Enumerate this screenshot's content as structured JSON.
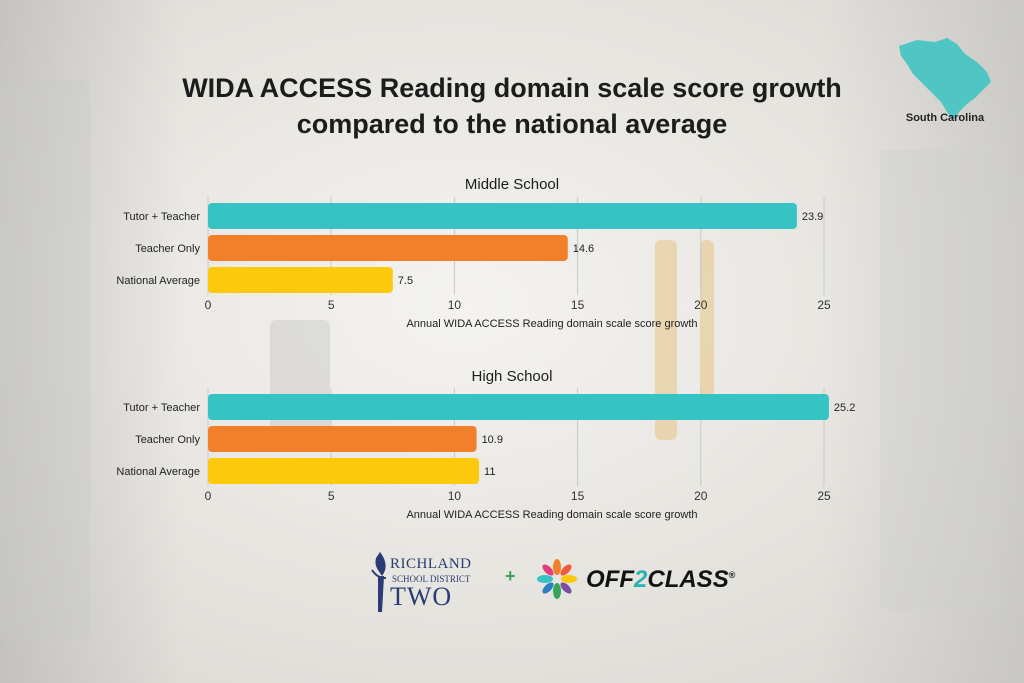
{
  "title_line1": "WIDA ACCESS Reading domain scale score growth",
  "title_line2": "compared to the national average",
  "state_label": "South Carolina",
  "colors": {
    "tutor_teacher": "#35c3c4",
    "teacher_only": "#f2802a",
    "national_average": "#fcc90b",
    "state_shape": "#4fc6c4"
  },
  "chart_data": [
    {
      "type": "bar",
      "orientation": "horizontal",
      "title": "Middle School",
      "categories": [
        "Tutor + Teacher",
        "Teacher Only",
        "National Average"
      ],
      "values": [
        23.9,
        14.6,
        7.5
      ],
      "xlabel": "Annual WIDA ACCESS Reading domain scale score growth",
      "xlim": [
        0,
        25
      ],
      "xticks": [
        0,
        5,
        10,
        15,
        20,
        25
      ],
      "grid": "vertical"
    },
    {
      "type": "bar",
      "orientation": "horizontal",
      "title": "High School",
      "categories": [
        "Tutor + Teacher",
        "Teacher Only",
        "National Average"
      ],
      "values": [
        25.2,
        10.9,
        11
      ],
      "xlabel": "Annual WIDA ACCESS Reading domain scale score growth",
      "xlim": [
        0,
        25
      ],
      "xticks": [
        0,
        5,
        10,
        15,
        20,
        25
      ],
      "grid": "vertical"
    }
  ],
  "logos": {
    "richland_line1": "RICHLAND",
    "richland_line2": "SCHOOL DISTRICT",
    "richland_line3": "TWO",
    "plus": "+",
    "off2class_a": "OFF",
    "off2class_b": "2",
    "off2class_c": "CLASS",
    "registered": "®"
  }
}
